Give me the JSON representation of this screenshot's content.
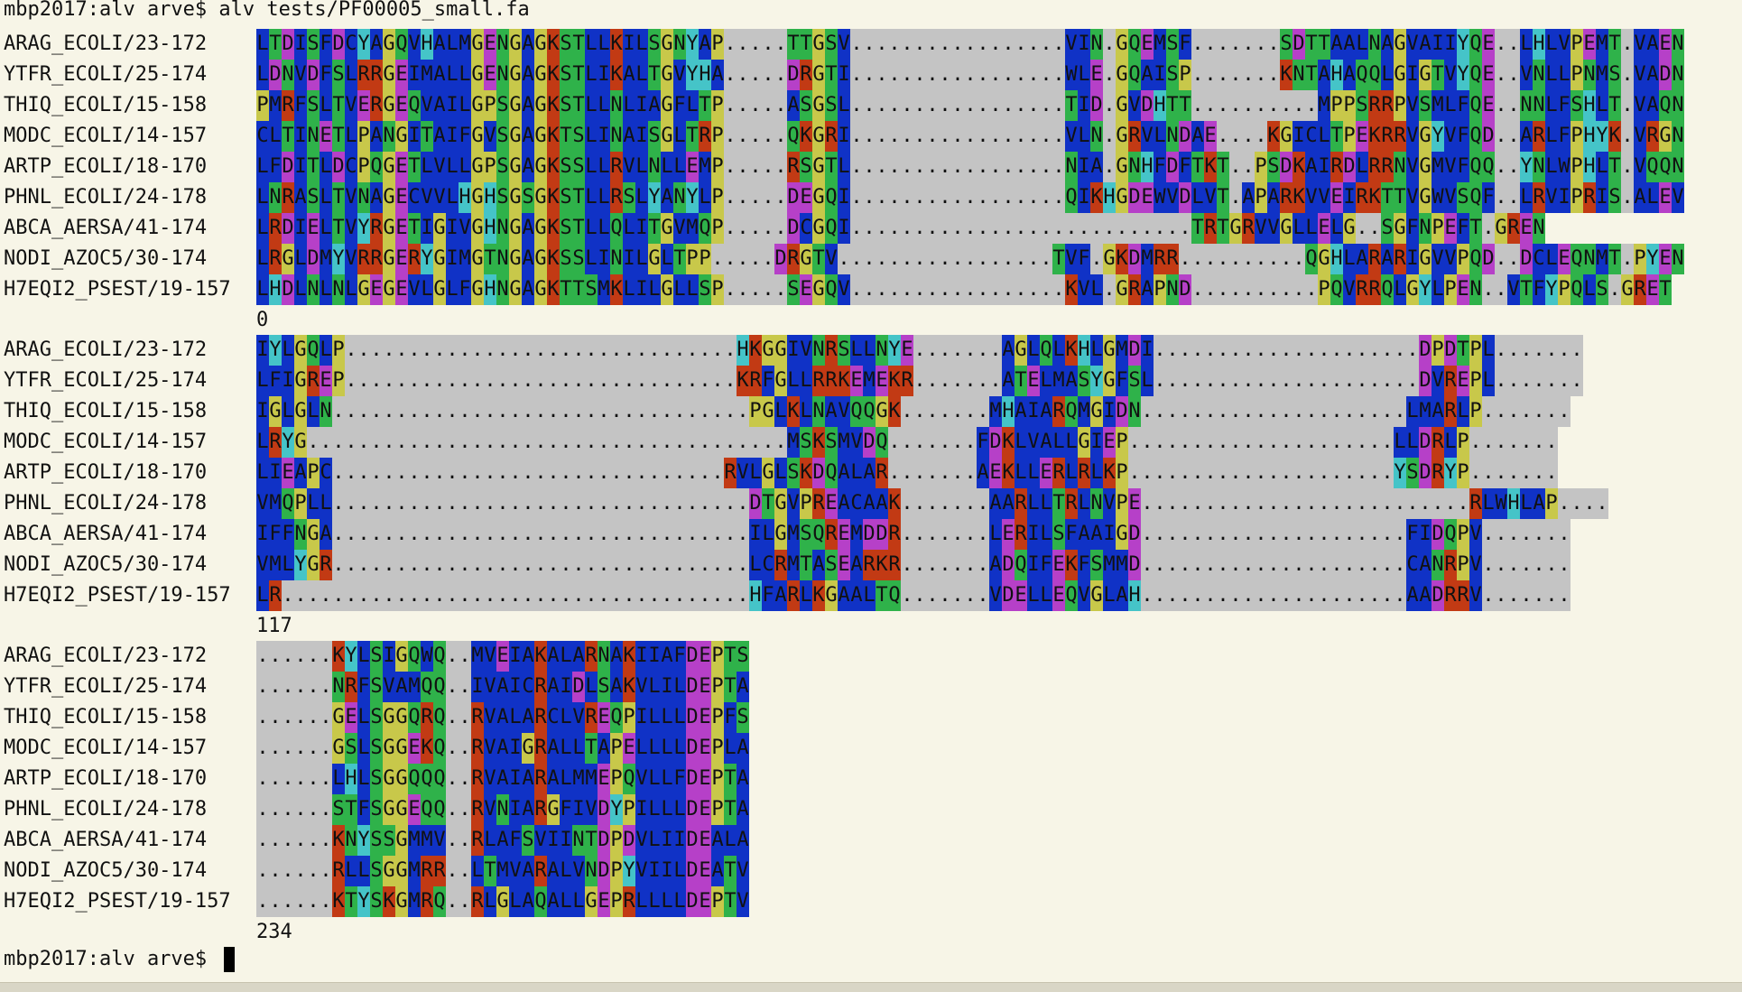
{
  "terminal": {
    "command_line": "mbp2017:alv arve$ alv tests/PF00005_small.fa",
    "prompt": "mbp2017:alv arve$ "
  },
  "colors": {
    "gap_bg": "#c4c4c4",
    "hydrophobic": "#1032c6",
    "polar": "#2fb24a",
    "positive": "#c23a14",
    "negative": "#b640c8",
    "glycine_proline": "#c8c84a",
    "aromatic_his": "#45c4c8"
  },
  "sequence_names": [
    "ARAG_ECOLI/23-172",
    "YTFR_ECOLI/25-174",
    "THIQ_ECOLI/15-158",
    "MODC_ECOLI/14-157",
    "ARTP_ECOLI/18-170",
    "PHNL_ECOLI/24-178",
    "ABCA_AERSA/41-174",
    "NODI_AZOC5/30-174",
    "H7EQI2_PSEST/19-157"
  ],
  "blocks": [
    {
      "start": "0",
      "rows": [
        "LTDISFDCYAGQVHALMGENGAGKSTLLKILSGNYAP.....TTGSV.................VIN.GQEMSF.......SDTTAALNAGVAIIYQE..LHLVPEMT.VAEN",
        "LDNVDFSLRRGEIMALLGENGAGKSTLIKALTGVYHA.....DRGTI.................WLE.GQAISP.......KNTAHAQQLGIGTVYQE..VNLLPNMS.VADN",
        "PMRFSLTVERGEQVAILGPSGAGKSTLLNLIAGFLTP.....ASGSL.................TID.GVDHTT..........MPPSRRPVSMLFQE..NNLFSHLT.VAQN",
        "CLTINETLPANGITAIFGVSGAGKTSLINAISGLTRP.....QKGRI.................VLN.GRVLNDAE....KGICLTPEKRRVGYVFQD..ARLFPHYK.VRGN",
        "LFDITLDCPQGETLVLLGPSGAGKSSLLRVLNLLEMP.....RSGTL.................NIA.GNHFDFTKT..PSDKAIRDLRRNVGMVFQQ..YNLWPHLT.VQQN",
        "LNRASLTVNAGECVVLHGHSGSGKSTLLRSLYANYLP.....DEGQI.................QIKHGDEWVDLVT.APARKVVEIRKTTVGWVSQF..LRVIPRIS.ALEV",
        "LRDIELTVYRGETIGIVGHNGAGKSTLLQLITGVMQP.....DCGQI...........................TRTGRVVGLLELG..SGFNPEFT.GREN",
        "LRGLDMYVRRGERYGIMGTNGAGKSSLINILGLTPP.....DRGTV.................TVF.GKDMRR..........QGHLARARIGVVPQD..DCLEQNMT.PYEN",
        "LHDLNLNLGEGEVLGLFGHNGAGKTTSMKLILGLLSP.....SEGQV.................KVL.GRAPND..........PQVRRQLGYLPEN..VTFYPQLS.GRET"
      ]
    },
    {
      "start": "117",
      "rows": [
        "IYLGQLP...............................HKGGIVNRSLLNYE.......AGLQLKHLGMDI.....................DPDTPL.......",
        "LFIGREP...............................KRFGLLRRKEMEKR.......ATELMASYGFSL.....................DVREPL.......",
        "IGLGLN.................................PGLKLNAVQQGK.......MHAIARQMGIDN.....................LMARLP.......",
        "LRYG......................................MSKSMVDQ.......FDKLVALLGIEP.....................LLDRLP.......",
        "LIEAPC...............................RVLGLSKDQALAR.......AEKLLERLRLKP.....................YSDRYP.......",
        "VMQPLL.................................DTGVPREACAAK.......AARLLTRLNVPE..........................RLWHLAP....",
        "IFFNGA.................................ILGMSQREMDDR.......LERILSFAAIGD.....................FIDQPV.......",
        "VMLYGR.................................LCRMTASEARKR.......ADQIFEKFSMMD.....................CANRPV.......",
        "LR.....................................HFARLKGAALTQ.......VDELLEQVGLAH.....................AADRRV......."
      ]
    },
    {
      "start": "234",
      "rows": [
        "......KYLSIGQWQ..MVEIAKALARNAKIIAFDEPTS",
        "......NRFSVAMQQ..IVAICRAIDLSAKVLILDEPTA",
        "......GELSGGQRQ..RVALARCLVREQPILLLDEPFS",
        "......GSLSGGEKQ..RVAIGRALLTAPELLLLDEPLA",
        "......LHLSGGQQQ..RVAIARALMMEPQVLLFDEPTA",
        "......STFSGGEQQ..RVNIARGFIVDYPILLLDEPTA",
        "......KNYSSGMMV..RLAFSVIINTDPDVLIIDEALA",
        "......RLLSGGMRR..LTMVARALVNDPYVIILDEATV",
        "......KTYSKGMRQ..RLGLAQALLGEPRLLLLDEPTV"
      ]
    }
  ]
}
